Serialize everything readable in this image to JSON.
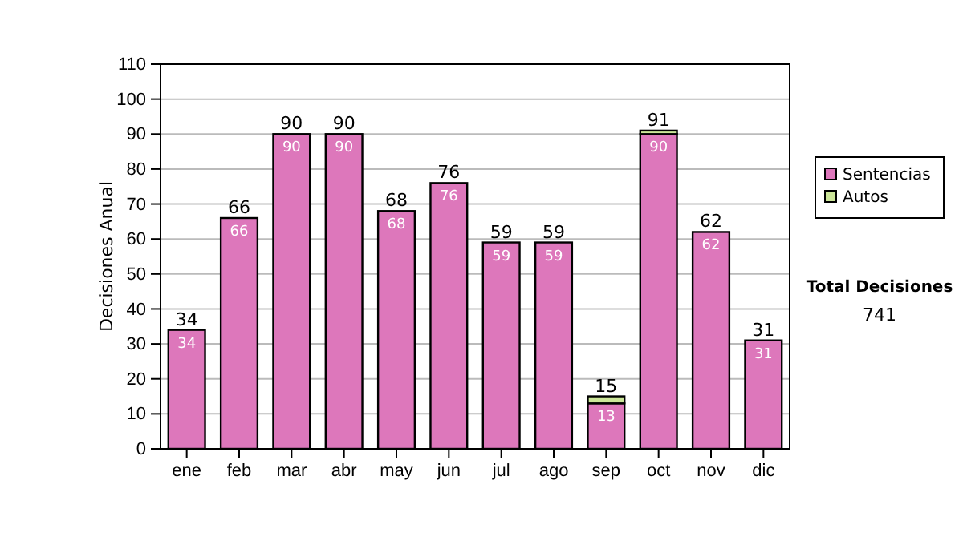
{
  "chart_data": {
    "type": "bar",
    "stacked": true,
    "ylabel": "Decisiones Anual",
    "categories": [
      "ene",
      "feb",
      "mar",
      "abr",
      "may",
      "jun",
      "jul",
      "ago",
      "sep",
      "oct",
      "nov",
      "dic"
    ],
    "series": [
      {
        "name": "Sentencias",
        "color": "#dd77bb",
        "values": [
          34,
          66,
          90,
          90,
          68,
          76,
          59,
          59,
          13,
          90,
          62,
          31
        ],
        "value_labels": [
          "34",
          "66",
          "90",
          "90",
          "68",
          "76",
          "59",
          "59",
          "13",
          "90",
          "62",
          "31"
        ]
      },
      {
        "name": "Autos",
        "color": "#cce699",
        "values": [
          0,
          0,
          0,
          0,
          0,
          0,
          0,
          0,
          2,
          1,
          0,
          0
        ]
      }
    ],
    "totals": [
      "34",
      "66",
      "90",
      "90",
      "68",
      "76",
      "59",
      "59",
      "15",
      "91",
      "62",
      "31"
    ],
    "ylim": [
      0,
      110
    ],
    "yticks": [
      0,
      10,
      20,
      30,
      40,
      50,
      60,
      70,
      80,
      90,
      100,
      110
    ],
    "grid": "y",
    "legend": "right",
    "annotations": [
      "Total Decisiones",
      "741"
    ]
  }
}
